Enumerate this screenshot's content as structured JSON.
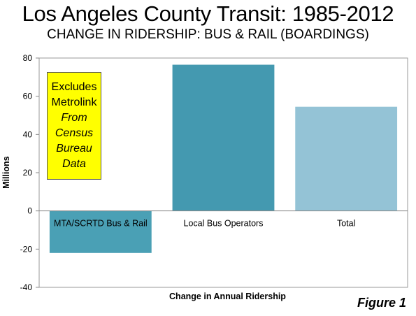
{
  "title": "Los Angeles County Transit: 1985-2012",
  "subtitle": "CHANGE IN RIDERSHIP: BUS & RAIL  (BOARDINGS)",
  "note": {
    "line1": "Excludes",
    "line2": "Metrolink",
    "line3": "From",
    "line4": "Census",
    "line5": "Bureau",
    "line6": "Data",
    "color": "#ffff00"
  },
  "figure_label": "Figure 1",
  "chart_data": {
    "type": "bar",
    "categories": [
      "MTA/SCRTD Bus & Rail",
      "Local Bus Operators",
      "Total"
    ],
    "values": [
      -22,
      76.5,
      54.5
    ],
    "colors": [
      "#4aa0b5",
      "#4499b0",
      "#94c3d6"
    ],
    "xlabel": "Change in Annual Ridership",
    "ylabel": "Millions",
    "ylim": [
      -40,
      80
    ],
    "yticks": [
      80,
      60,
      40,
      20,
      0,
      -20,
      -40
    ],
    "grid": false,
    "legend": "none"
  }
}
